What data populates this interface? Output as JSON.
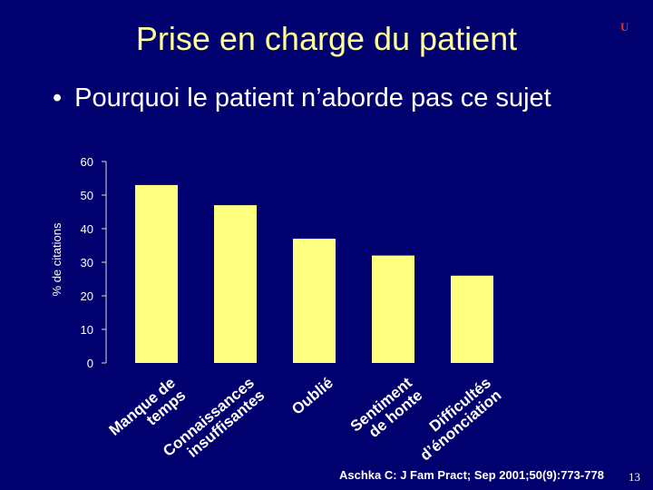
{
  "slide": {
    "title": "Prise en charge du patient",
    "logo_text": "U",
    "bullet_symbol": "•",
    "bullet": "Pourquoi le patient n’aborde pas ce sujet",
    "citation": "Aschka C: J Fam Pract; Sep 2001;50(9):773-778",
    "page_number": "13"
  },
  "colors": {
    "background": "#00006e",
    "bar": "#ffff80",
    "title": "#ffff99",
    "text": "#ffffff",
    "axis": "#dddddd"
  },
  "chart_data": {
    "type": "bar",
    "ylabel": "% de citations",
    "ylim": [
      0,
      60
    ],
    "yticks": [
      0,
      10,
      20,
      30,
      40,
      50,
      60
    ],
    "grid": false,
    "legend": "none",
    "categories": [
      [
        "Manque de",
        "temps"
      ],
      [
        "Connaissances",
        "insuffisantes"
      ],
      [
        "Oublié"
      ],
      [
        "Sentiment",
        "de honte"
      ],
      [
        "Difficultés",
        "d’énonciation"
      ]
    ],
    "values": [
      53,
      47,
      37,
      32,
      26
    ]
  }
}
